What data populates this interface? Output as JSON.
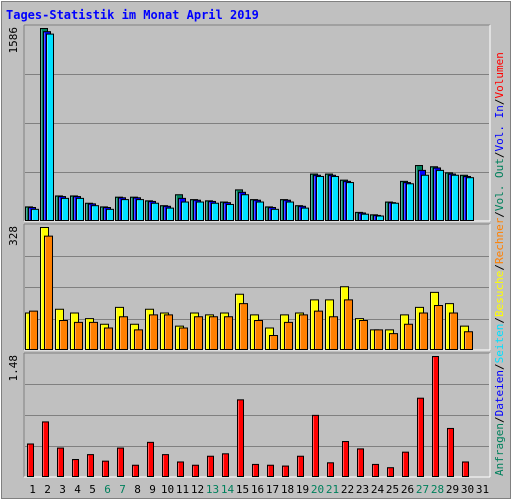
{
  "title": "Tages-Statistik im Monat April 2019",
  "legend": [
    {
      "text": "Anfragen",
      "color": "#00805C"
    },
    {
      "text": "/",
      "color": "#000000"
    },
    {
      "text": "Dateien",
      "color": "#0000FF"
    },
    {
      "text": "/",
      "color": "#000000"
    },
    {
      "text": "Seiten",
      "color": "#00E0FF"
    },
    {
      "text": "/",
      "color": "#000000"
    },
    {
      "text": "Besuche",
      "color": "#FFFF00"
    },
    {
      "text": "/",
      "color": "#000000"
    },
    {
      "text": "Rechner",
      "color": "#FF8000"
    },
    {
      "text": "/",
      "color": "#000000"
    },
    {
      "text": "Vol. Out",
      "color": "#00805C"
    },
    {
      "text": "/",
      "color": "#000000"
    },
    {
      "text": "Vol. In",
      "color": "#0000FF"
    },
    {
      "text": "/",
      "color": "#000000"
    },
    {
      "text": "Volumen",
      "color": "#FF0000"
    }
  ],
  "colors": {
    "title": "#0000FF",
    "weekend_label": "#00805C",
    "weekday_label": "#000000",
    "hits": "#00805C",
    "files": "#0000FF",
    "pages": "#00E0FF",
    "visits": "#FFFF00",
    "sites": "#FF8000",
    "volume": "#FF0000",
    "grid": "#808080",
    "panel_bg": "#C0C0C0"
  },
  "chart_data": [
    {
      "type": "bar",
      "panel": "hits_files_pages",
      "ymax_label": "1586",
      "ylim": [
        0,
        1586
      ],
      "categories": [
        "1",
        "2",
        "3",
        "4",
        "5",
        "6",
        "7",
        "8",
        "9",
        "10",
        "11",
        "12",
        "13",
        "14",
        "15",
        "16",
        "17",
        "18",
        "19",
        "20",
        "21",
        "22",
        "23",
        "24",
        "25",
        "26",
        "27",
        "28",
        "29",
        "30",
        "31"
      ],
      "weekend_days": [
        "6",
        "7",
        "13",
        "14",
        "20",
        "21",
        "27",
        "28"
      ],
      "series": [
        {
          "name": "Anfragen",
          "values": [
            120,
            1586,
            210,
            210,
            150,
            120,
            200,
            200,
            170,
            130,
            220,
            180,
            170,
            160,
            260,
            180,
            120,
            180,
            130,
            390,
            390,
            340,
            75,
            55,
            160,
            330,
            460,
            450,
            400,
            380,
            0
          ]
        },
        {
          "name": "Dateien",
          "values": [
            115,
            1560,
            205,
            205,
            145,
            115,
            195,
            195,
            165,
            125,
            190,
            175,
            165,
            155,
            240,
            175,
            115,
            175,
            125,
            380,
            380,
            330,
            70,
            50,
            155,
            320,
            420,
            440,
            390,
            370,
            0
          ]
        },
        {
          "name": "Seiten",
          "values": [
            100,
            1540,
            190,
            190,
            130,
            100,
            180,
            180,
            150,
            110,
            160,
            160,
            150,
            140,
            220,
            160,
            100,
            160,
            110,
            370,
            370,
            320,
            60,
            45,
            150,
            310,
            380,
            420,
            380,
            360,
            0
          ]
        }
      ]
    },
    {
      "type": "bar",
      "panel": "visits_sites",
      "ymax_label": "328",
      "ylim": [
        0,
        328
      ],
      "categories": [
        "1",
        "2",
        "3",
        "4",
        "5",
        "6",
        "7",
        "8",
        "9",
        "10",
        "11",
        "12",
        "13",
        "14",
        "15",
        "16",
        "17",
        "18",
        "19",
        "20",
        "21",
        "22",
        "23",
        "24",
        "25",
        "26",
        "27",
        "28",
        "29",
        "30",
        "31"
      ],
      "series": [
        {
          "name": "Besuche",
          "values": [
            100,
            328,
            110,
            100,
            85,
            70,
            115,
            70,
            110,
            100,
            65,
            100,
            95,
            100,
            150,
            95,
            60,
            95,
            100,
            135,
            135,
            170,
            85,
            55,
            55,
            95,
            115,
            155,
            125,
            65,
            0
          ]
        },
        {
          "name": "Rechner",
          "values": [
            105,
            305,
            80,
            75,
            75,
            60,
            90,
            55,
            95,
            95,
            60,
            90,
            90,
            90,
            125,
            80,
            40,
            75,
            95,
            105,
            90,
            135,
            80,
            55,
            45,
            70,
            100,
            120,
            100,
            50,
            0
          ]
        }
      ]
    },
    {
      "type": "bar",
      "panel": "volume",
      "ymax_label": "1.48",
      "ylim": [
        0,
        1.48
      ],
      "categories": [
        "1",
        "2",
        "3",
        "4",
        "5",
        "6",
        "7",
        "8",
        "9",
        "10",
        "11",
        "12",
        "13",
        "14",
        "15",
        "16",
        "17",
        "18",
        "19",
        "20",
        "21",
        "22",
        "23",
        "24",
        "25",
        "26",
        "27",
        "28",
        "29",
        "30",
        "31"
      ],
      "series": [
        {
          "name": "Volumen",
          "values": [
            0.41,
            0.68,
            0.36,
            0.22,
            0.28,
            0.2,
            0.36,
            0.15,
            0.43,
            0.28,
            0.19,
            0.15,
            0.26,
            0.29,
            0.95,
            0.16,
            0.15,
            0.14,
            0.26,
            0.76,
            0.18,
            0.44,
            0.35,
            0.16,
            0.12,
            0.31,
            0.97,
            1.48,
            0.6,
            0.19,
            0
          ]
        }
      ]
    }
  ]
}
